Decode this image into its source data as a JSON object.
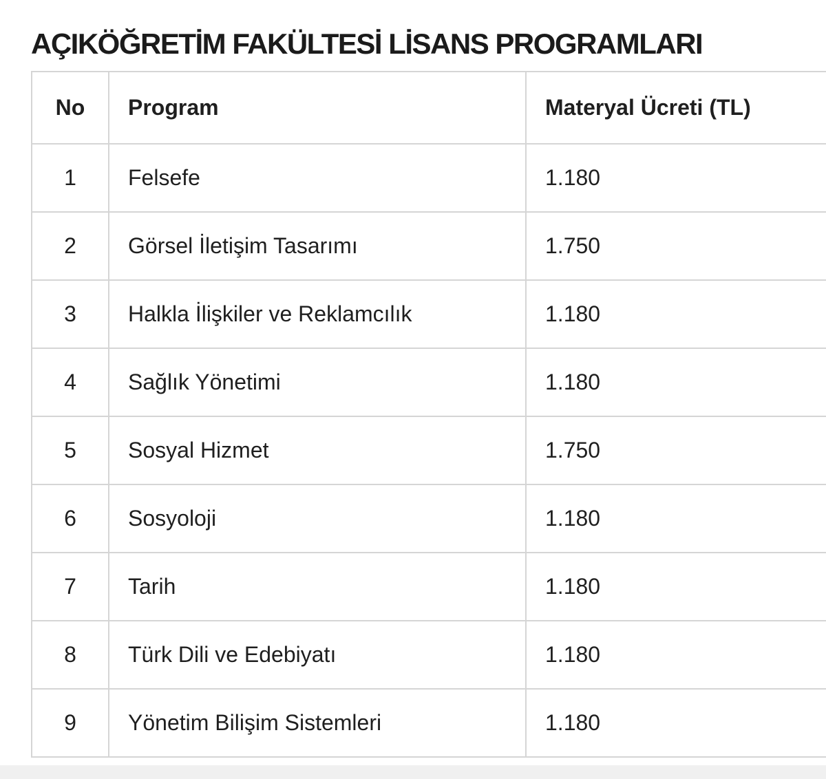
{
  "page": {
    "title": "AÇIKÖĞRETİM FAKÜLTESİ LİSANS PROGRAMLARI"
  },
  "table": {
    "columns": [
      "No",
      "Program",
      "Materyal Ücreti (TL)"
    ],
    "rows": [
      {
        "no": "1",
        "program": "Felsefe",
        "fee": "1.180"
      },
      {
        "no": "2",
        "program": "Görsel İletişim Tasarımı",
        "fee": "1.750"
      },
      {
        "no": "3",
        "program": "Halkla İlişkiler ve Reklamcılık",
        "fee": "1.180"
      },
      {
        "no": "4",
        "program": "Sağlık Yönetimi",
        "fee": "1.180"
      },
      {
        "no": "5",
        "program": "Sosyal Hizmet",
        "fee": "1.750"
      },
      {
        "no": "6",
        "program": "Sosyoloji",
        "fee": "1.180"
      },
      {
        "no": "7",
        "program": "Tarih",
        "fee": "1.180"
      },
      {
        "no": "8",
        "program": "Türk Dili ve Edebiyatı",
        "fee": "1.180"
      },
      {
        "no": "9",
        "program": "Yönetim Bilişim Sistemleri",
        "fee": "1.180"
      }
    ]
  },
  "colors": {
    "text": "#1f1f1f",
    "border": "#d5d5d5",
    "background": "#ffffff",
    "bottom_strip": "#f0f0f0"
  }
}
